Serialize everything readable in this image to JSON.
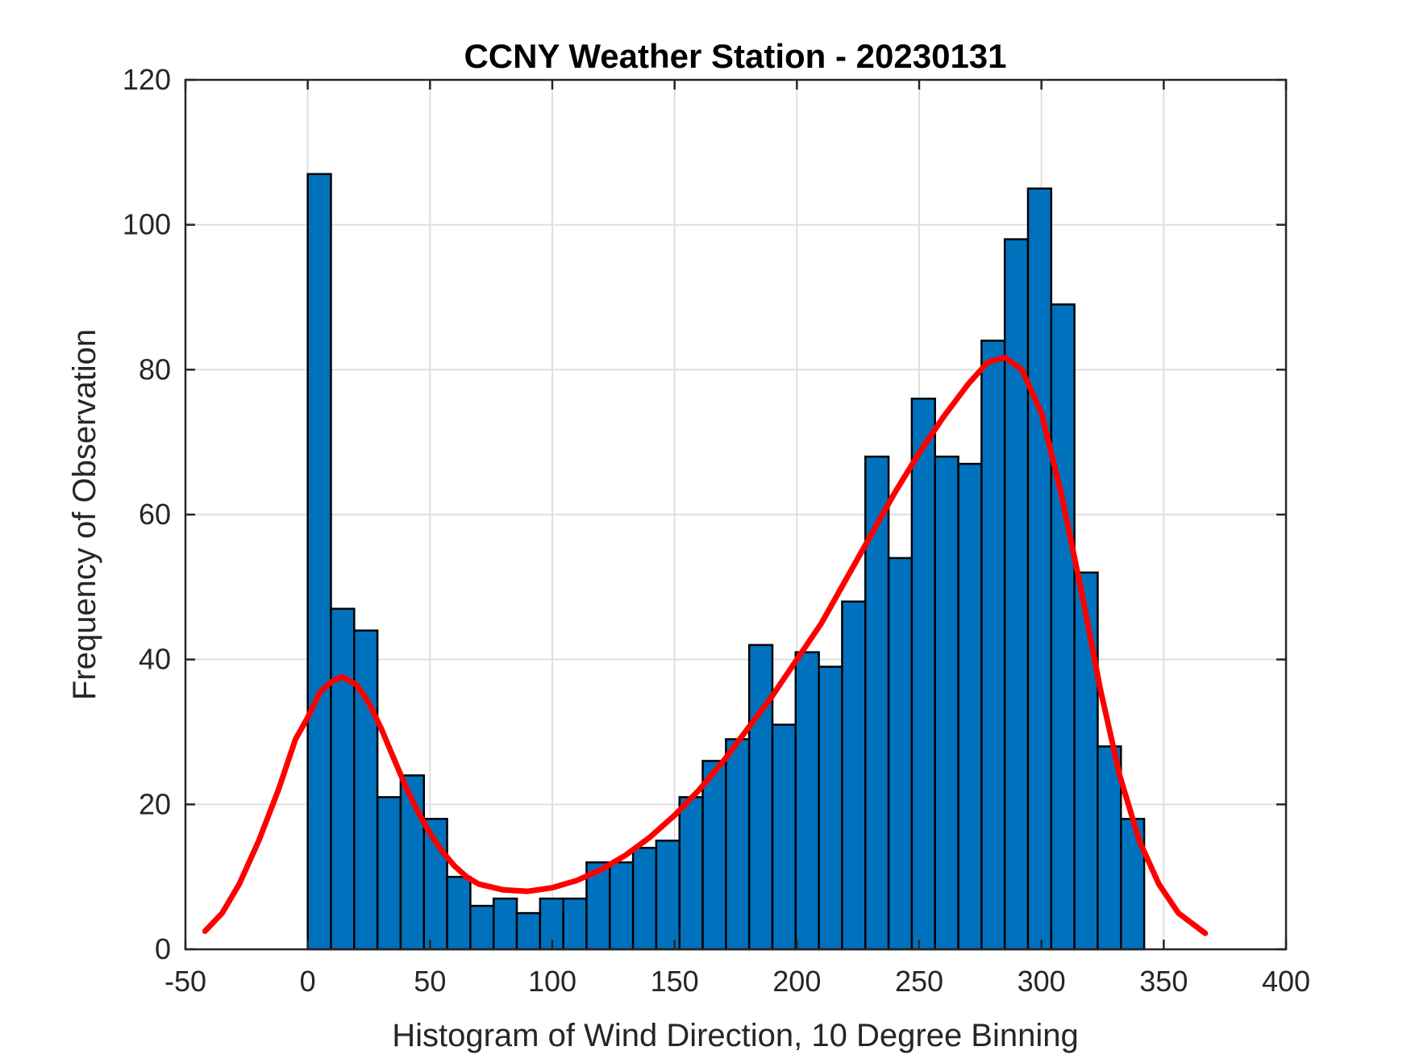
{
  "chart_data": {
    "type": "bar",
    "title": "CCNY Weather Station - 20230131",
    "xlabel": "Histogram of Wind Direction, 10 Degree Binning",
    "ylabel": "Frequency of Observation",
    "xlim": [
      -50,
      400
    ],
    "ylim": [
      0,
      120
    ],
    "xticks": [
      -50,
      0,
      50,
      100,
      150,
      200,
      250,
      300,
      350,
      400
    ],
    "yticks": [
      0,
      20,
      40,
      60,
      80,
      100,
      120
    ],
    "grid": true,
    "bin_width": 9.5,
    "bins": [
      {
        "x0": 0,
        "count": 107
      },
      {
        "x0": 9.5,
        "count": 47
      },
      {
        "x0": 19,
        "count": 44
      },
      {
        "x0": 28.5,
        "count": 21
      },
      {
        "x0": 38,
        "count": 24
      },
      {
        "x0": 47.5,
        "count": 18
      },
      {
        "x0": 57,
        "count": 10
      },
      {
        "x0": 66.5,
        "count": 6
      },
      {
        "x0": 76,
        "count": 7
      },
      {
        "x0": 85.5,
        "count": 5
      },
      {
        "x0": 95,
        "count": 7
      },
      {
        "x0": 104.5,
        "count": 7
      },
      {
        "x0": 114,
        "count": 12
      },
      {
        "x0": 123.5,
        "count": 12
      },
      {
        "x0": 133,
        "count": 14
      },
      {
        "x0": 142.5,
        "count": 15
      },
      {
        "x0": 152,
        "count": 21
      },
      {
        "x0": 161.5,
        "count": 26
      },
      {
        "x0": 171,
        "count": 29
      },
      {
        "x0": 180.5,
        "count": 42
      },
      {
        "x0": 190,
        "count": 31
      },
      {
        "x0": 199.5,
        "count": 41
      },
      {
        "x0": 209,
        "count": 39
      },
      {
        "x0": 218.5,
        "count": 48
      },
      {
        "x0": 228,
        "count": 68
      },
      {
        "x0": 237.5,
        "count": 54
      },
      {
        "x0": 247,
        "count": 76
      },
      {
        "x0": 256.5,
        "count": 68
      },
      {
        "x0": 266,
        "count": 67
      },
      {
        "x0": 275.5,
        "count": 84
      },
      {
        "x0": 285,
        "count": 98
      },
      {
        "x0": 294.5,
        "count": 105
      },
      {
        "x0": 304,
        "count": 89
      },
      {
        "x0": 313.5,
        "count": 52
      },
      {
        "x0": 323,
        "count": 28
      },
      {
        "x0": 332.5,
        "count": 18
      }
    ],
    "fit_curve": {
      "color": "#ff0000",
      "points": [
        [
          -42,
          2.5
        ],
        [
          -35,
          5
        ],
        [
          -28,
          9
        ],
        [
          -20,
          15
        ],
        [
          -12,
          22
        ],
        [
          -5,
          29
        ],
        [
          0,
          32
        ],
        [
          5,
          35.5
        ],
        [
          10,
          37
        ],
        [
          14,
          37.6
        ],
        [
          20,
          36.5
        ],
        [
          25,
          34
        ],
        [
          30,
          30.5
        ],
        [
          35,
          26.5
        ],
        [
          40,
          22.5
        ],
        [
          45,
          19
        ],
        [
          50,
          16
        ],
        [
          55,
          13.5
        ],
        [
          60,
          11.5
        ],
        [
          65,
          10
        ],
        [
          70,
          9
        ],
        [
          80,
          8.2
        ],
        [
          90,
          8
        ],
        [
          100,
          8.5
        ],
        [
          110,
          9.5
        ],
        [
          120,
          11
        ],
        [
          130,
          13
        ],
        [
          140,
          15.5
        ],
        [
          150,
          18.5
        ],
        [
          160,
          22
        ],
        [
          170,
          26
        ],
        [
          180,
          30.5
        ],
        [
          190,
          35
        ],
        [
          200,
          40
        ],
        [
          210,
          45
        ],
        [
          220,
          51
        ],
        [
          230,
          57
        ],
        [
          240,
          63
        ],
        [
          250,
          68.5
        ],
        [
          260,
          73.5
        ],
        [
          270,
          78
        ],
        [
          278,
          81
        ],
        [
          285,
          81.7
        ],
        [
          292,
          80
        ],
        [
          300,
          74
        ],
        [
          308,
          63
        ],
        [
          316,
          50
        ],
        [
          324,
          36
        ],
        [
          332,
          24
        ],
        [
          340,
          15
        ],
        [
          348,
          9
        ],
        [
          356,
          5
        ],
        [
          367,
          2.2
        ]
      ]
    }
  },
  "colors": {
    "bar_fill": "#0072bd",
    "bar_edge": "#000000",
    "fit_line": "#ff0000",
    "grid": "#dfdfdf"
  }
}
